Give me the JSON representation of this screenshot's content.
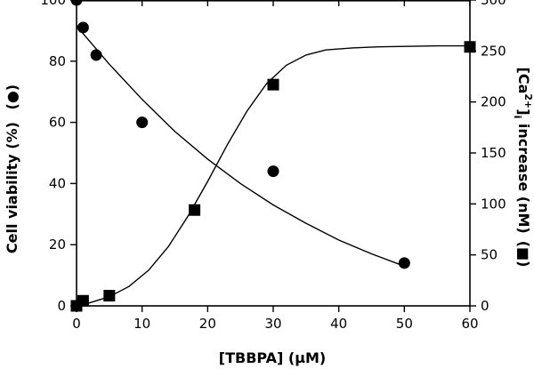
{
  "chart_data": {
    "type": "scatter",
    "xlabel": "[TBBPA] (µM)",
    "ylabel_left": "Cell viability (%)",
    "ylabel_left_marker": "(●)",
    "ylabel_right_base": "[Ca",
    "ylabel_right_sup": "2+",
    "ylabel_right_end": "]",
    "ylabel_right_sub": "i",
    "ylabel_right_tail": " increase (nM)",
    "ylabel_right_marker": "(■)",
    "xlim": [
      0,
      60
    ],
    "ylim_left": [
      0,
      100
    ],
    "ylim_right": [
      0,
      300
    ],
    "x_ticks": [
      0,
      10,
      20,
      30,
      40,
      50,
      60
    ],
    "y_left_ticks": [
      0,
      20,
      40,
      60,
      80,
      100
    ],
    "y_right_ticks": [
      0,
      50,
      100,
      150,
      200,
      250,
      300
    ],
    "grid": false,
    "series": [
      {
        "axis": "left",
        "marker": "circle",
        "x": [
          0,
          1,
          3,
          10,
          30,
          50
        ],
        "y": [
          100,
          91,
          82,
          60,
          44,
          14
        ],
        "fit": {
          "x": [
            0,
            5,
            10,
            15,
            20,
            25,
            30,
            35,
            40,
            45,
            50
          ],
          "y": [
            91.5,
            79,
            67.5,
            57,
            48,
            40,
            33,
            27,
            21.5,
            17,
            13
          ]
        }
      },
      {
        "axis": "right",
        "marker": "square",
        "x": [
          0,
          1,
          5,
          18,
          30,
          60
        ],
        "y": [
          0,
          5,
          10,
          94,
          217,
          254
        ],
        "fit": {
          "x": [
            0,
            2,
            5,
            8,
            11,
            14,
            17,
            20,
            23,
            26,
            29,
            32,
            35,
            38,
            42,
            46,
            50,
            55,
            60
          ],
          "y": [
            0,
            3,
            9,
            19,
            35,
            58,
            88,
            122,
            158,
            191,
            218,
            236,
            246,
            251,
            253,
            254,
            254.5,
            255,
            255
          ]
        }
      }
    ]
  }
}
